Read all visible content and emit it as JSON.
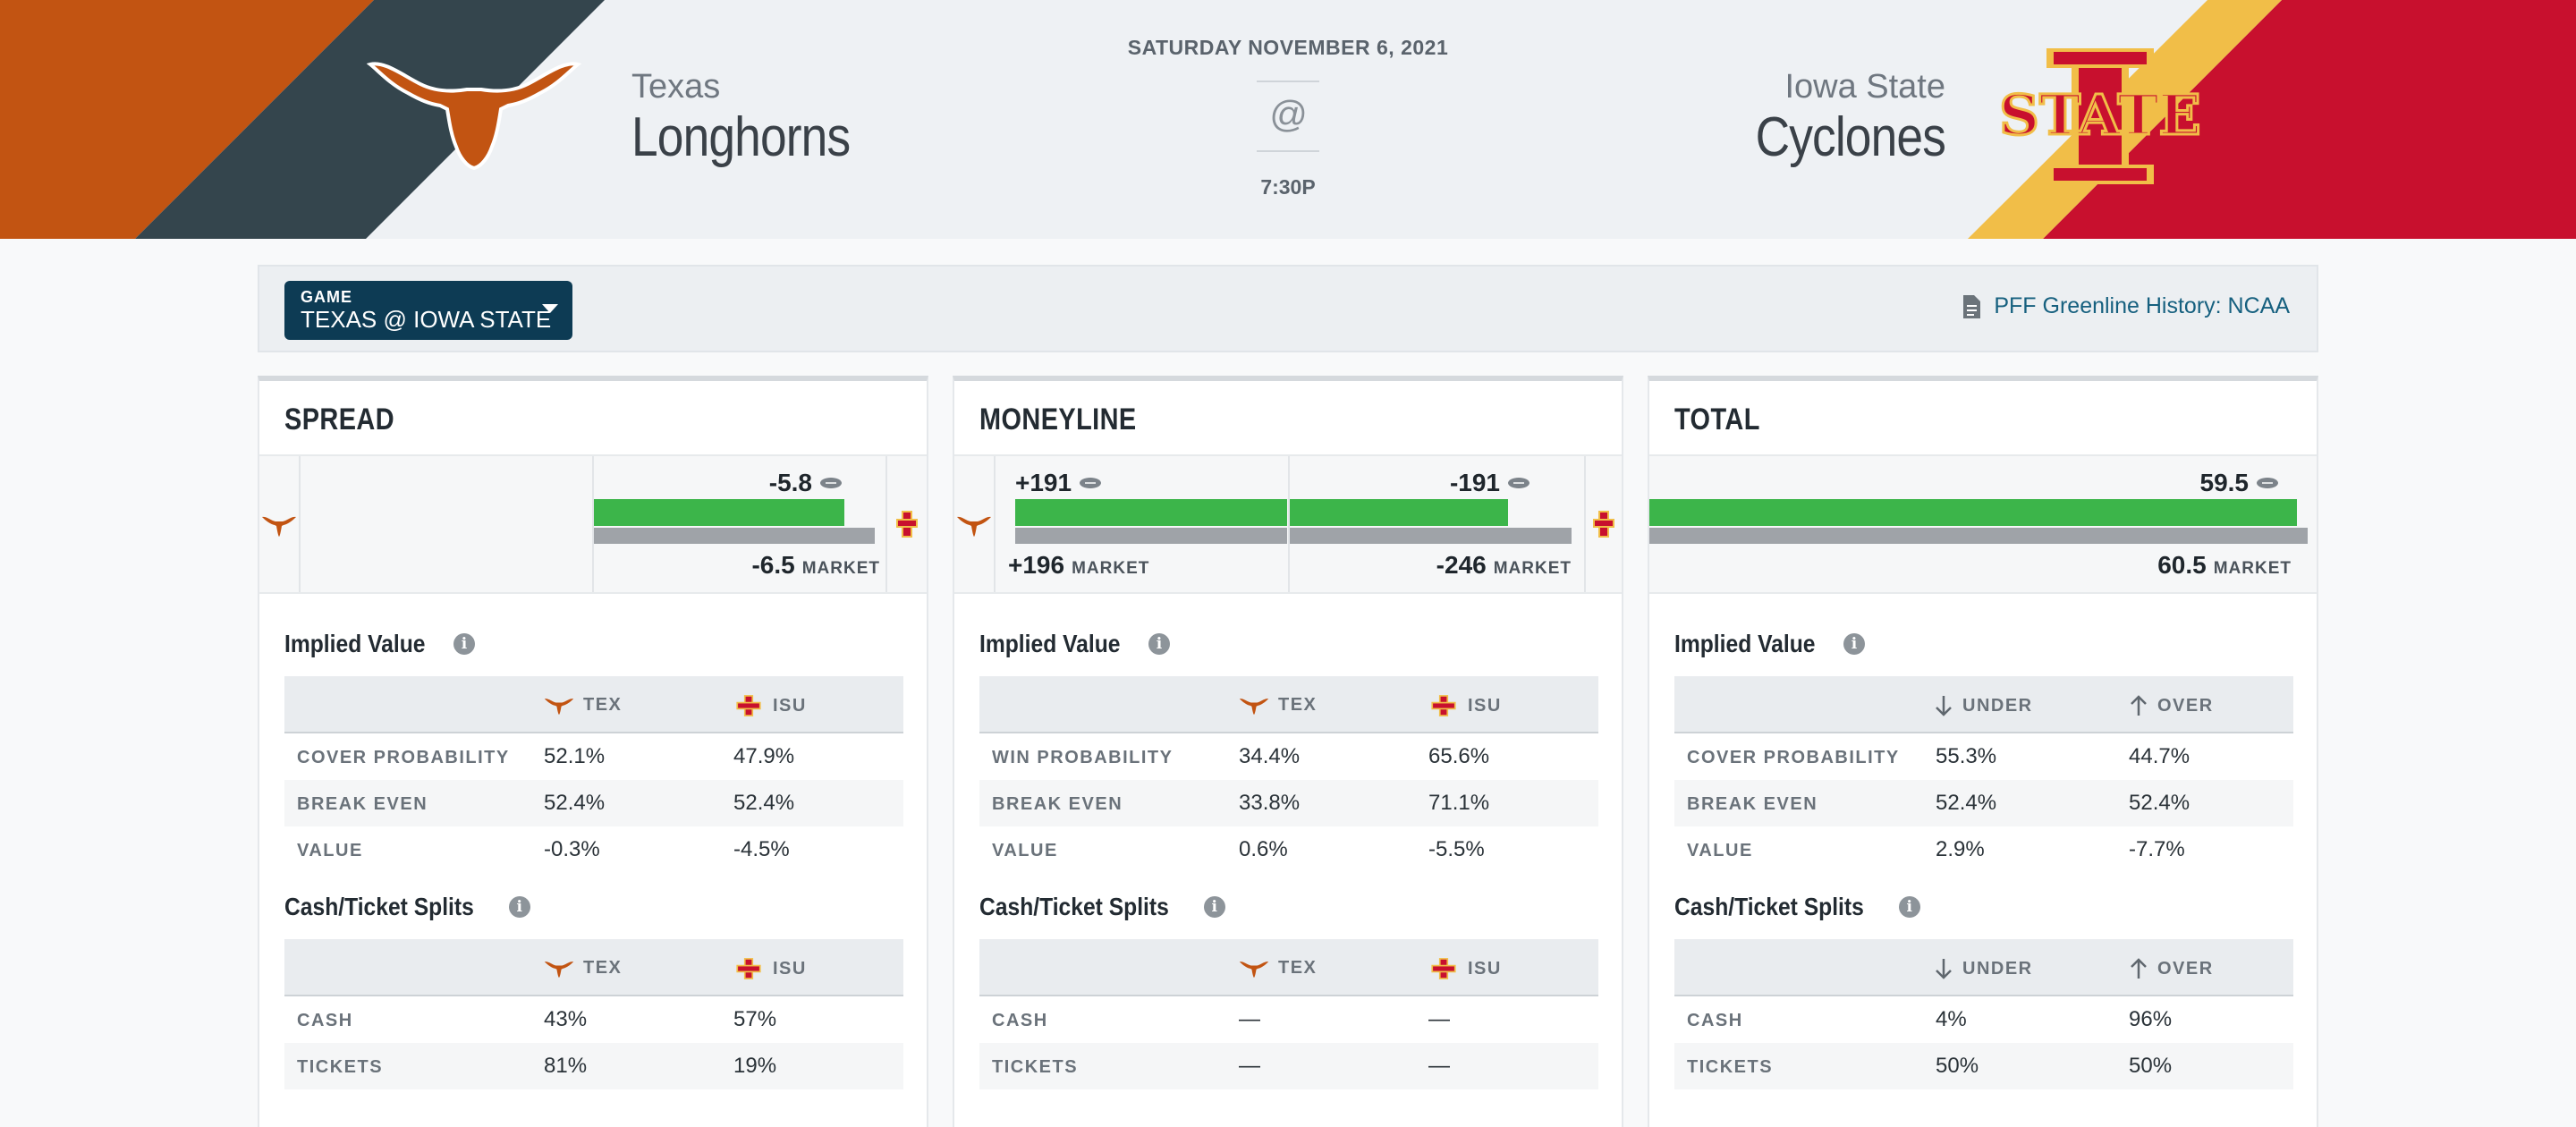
{
  "header": {
    "date": "SATURDAY NOVEMBER 6, 2021",
    "at": "@",
    "time": "7:30P",
    "away": {
      "city": "Texas",
      "name": "Longhorns",
      "color": "#c25412"
    },
    "home": {
      "city": "Iowa State",
      "name": "Cyclones",
      "color": "#c8102e",
      "logo_text": "STATE"
    }
  },
  "game_selector": {
    "label": "GAME",
    "value": "TEXAS @ IOWA STATE"
  },
  "history_link": "PFF Greenline History: NCAA",
  "market_label": "MARKET",
  "panels": {
    "spread": {
      "title": "SPREAD",
      "line": "-5.8",
      "market": "-6.5",
      "line_fraction": 0.89,
      "implied": {
        "title": "Implied Value",
        "cols": [
          "TEX",
          "ISU"
        ],
        "rows": [
          {
            "label": "COVER PROBABILITY",
            "a": "52.1%",
            "b": "47.9%"
          },
          {
            "label": "BREAK EVEN",
            "a": "52.4%",
            "b": "52.4%"
          },
          {
            "label": "VALUE",
            "a": "-0.3%",
            "b": "-4.5%"
          }
        ]
      },
      "splits": {
        "title": "Cash/Ticket Splits",
        "cols": [
          "TEX",
          "ISU"
        ],
        "rows": [
          {
            "label": "CASH",
            "a": "43%",
            "b": "57%"
          },
          {
            "label": "TICKETS",
            "a": "81%",
            "b": "19%"
          }
        ]
      }
    },
    "moneyline": {
      "title": "MONEYLINE",
      "away_line": "+191",
      "home_line": "-191",
      "away_market": "+196",
      "home_market": "-246",
      "implied": {
        "title": "Implied Value",
        "cols": [
          "TEX",
          "ISU"
        ],
        "rows": [
          {
            "label": "WIN PROBABILITY",
            "a": "34.4%",
            "b": "65.6%"
          },
          {
            "label": "BREAK EVEN",
            "a": "33.8%",
            "b": "71.1%"
          },
          {
            "label": "VALUE",
            "a": "0.6%",
            "b": "-5.5%"
          }
        ]
      },
      "splits": {
        "title": "Cash/Ticket Splits",
        "cols": [
          "TEX",
          "ISU"
        ],
        "rows": [
          {
            "label": "CASH",
            "a": "—",
            "b": "—"
          },
          {
            "label": "TICKETS",
            "a": "—",
            "b": "—"
          }
        ]
      }
    },
    "total": {
      "title": "TOTAL",
      "line": "59.5",
      "market": "60.5",
      "implied": {
        "title": "Implied Value",
        "cols": [
          "UNDER",
          "OVER"
        ],
        "rows": [
          {
            "label": "COVER PROBABILITY",
            "a": "55.3%",
            "b": "44.7%"
          },
          {
            "label": "BREAK EVEN",
            "a": "52.4%",
            "b": "52.4%"
          },
          {
            "label": "VALUE",
            "a": "2.9%",
            "b": "-7.7%"
          }
        ]
      },
      "splits": {
        "title": "Cash/Ticket Splits",
        "cols": [
          "UNDER",
          "OVER"
        ],
        "rows": [
          {
            "label": "CASH",
            "a": "4%",
            "b": "96%"
          },
          {
            "label": "TICKETS",
            "a": "50%",
            "b": "50%"
          }
        ]
      }
    }
  },
  "icons": {
    "away_logo": "longhorn-icon",
    "home_logo": "isu-logo-icon",
    "pff_mark": "football-icon",
    "doc": "document-icon",
    "info": "info-icon",
    "under": "arrow-down-icon",
    "over": "arrow-up-icon"
  }
}
